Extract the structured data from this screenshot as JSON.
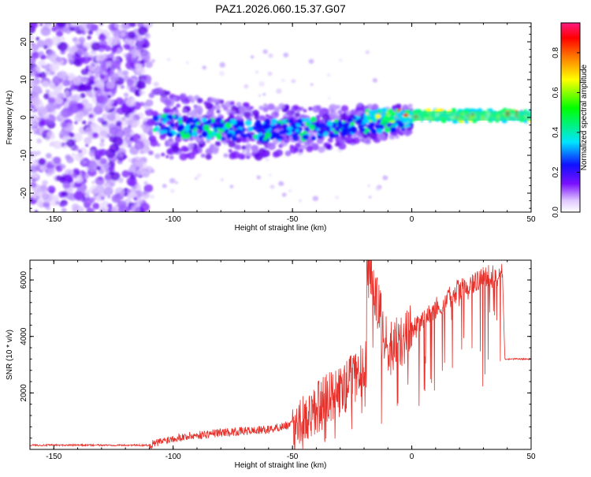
{
  "title": "PAZ1.2026.060.15.37.G07",
  "chart_data": [
    {
      "type": "heatmap",
      "name": "spectrogram",
      "xlabel": "Height of straight line (km)",
      "ylabel": "Frequency (Hz)",
      "xlim": [
        -160,
        50
      ],
      "ylim": [
        -25,
        25
      ],
      "xticks": [
        -150,
        -100,
        -50,
        0,
        50
      ],
      "yticks": [
        -20,
        -10,
        0,
        10,
        20
      ],
      "colorbar": {
        "label": "Normalized spectral amplitude",
        "range": [
          0,
          0.95
        ],
        "ticks": [
          0.0,
          0.2,
          0.4,
          0.6,
          0.8
        ]
      },
      "description_note": "noise region x<-110, signal band centered near 0 Hz tightening toward x=50"
    },
    {
      "type": "line",
      "name": "snr",
      "xlabel": "Height of straight line (km)",
      "ylabel": "SNR (10 * v/v)",
      "xlim": [
        -160,
        50
      ],
      "ylim": [
        0,
        6700
      ],
      "xticks": [
        -150,
        -100,
        -50,
        0,
        50
      ],
      "yticks": [
        2000,
        4000,
        6000
      ],
      "color": "#e8302a",
      "series_keypoints": {
        "x": [
          -160,
          -110,
          -100,
          -80,
          -60,
          -50,
          -40,
          -30,
          -20,
          -18,
          -10,
          0,
          10,
          20,
          30,
          38,
          39,
          50
        ],
        "y": [
          150,
          150,
          400,
          600,
          700,
          900,
          1500,
          2000,
          3000,
          6600,
          3500,
          4200,
          5000,
          5700,
          6100,
          6200,
          3200,
          3200
        ]
      }
    }
  ]
}
